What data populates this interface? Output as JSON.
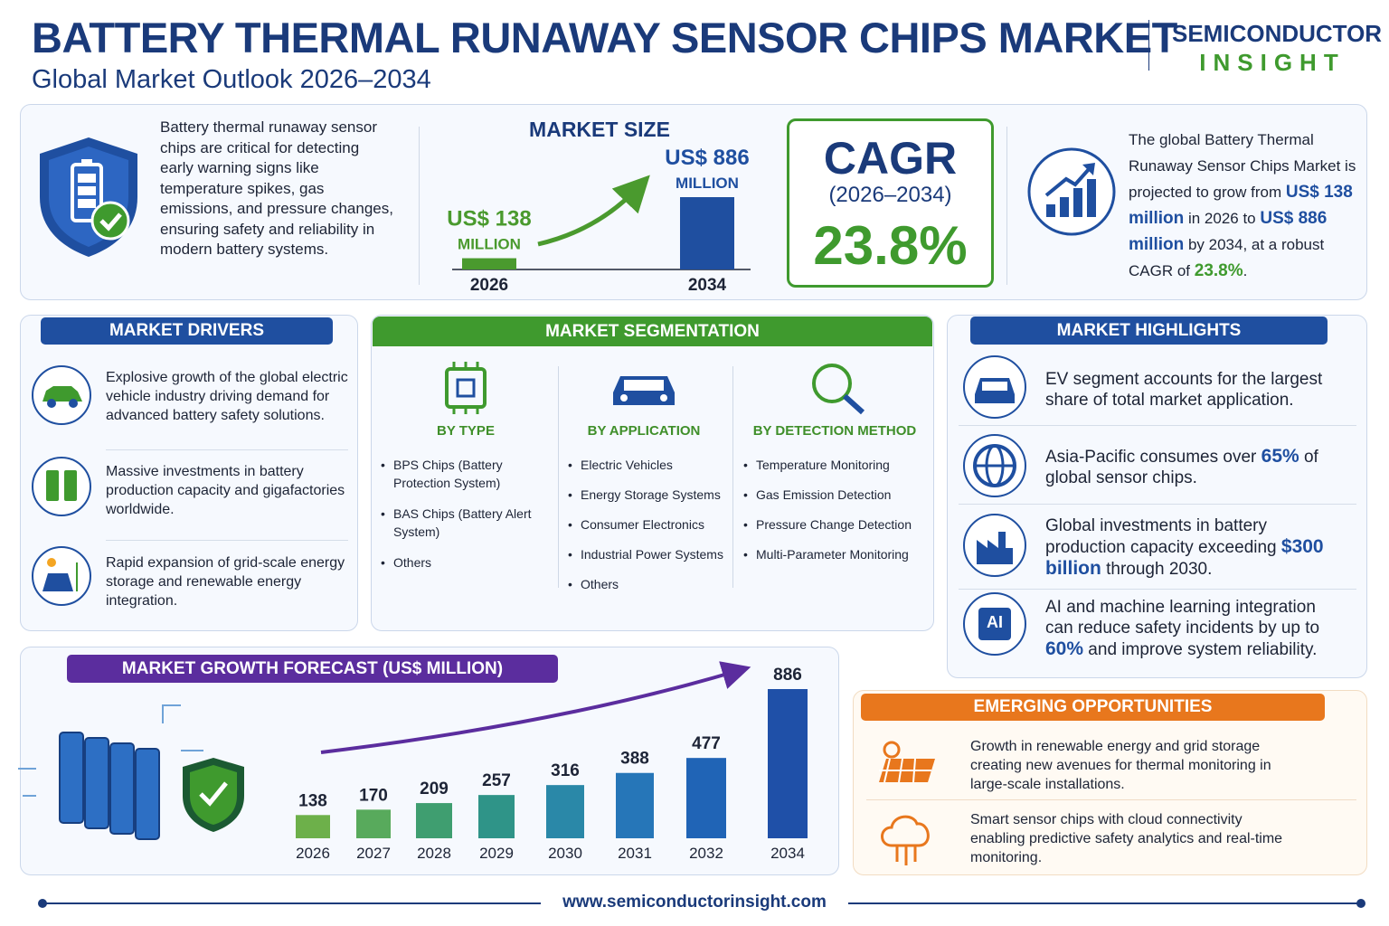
{
  "header": {
    "title": "BATTERY THERMAL RUNAWAY SENSOR CHIPS MARKET",
    "subtitle": "Global Market Outlook 2026–2034",
    "brand_top": "SEMICONDUCTOR",
    "brand_bottom": "INSIGHT"
  },
  "summary": {
    "description": "Battery thermal runaway sensor chips are critical for detecting early warning signs like temperature spikes, gas emissions, and pressure changes, ensuring safety and reliability in modern battery systems.",
    "cagr_title": "CAGR",
    "cagr_period": "(2026–2034)",
    "cagr_value": "23.8%",
    "outlook": [
      "The global Battery Thermal Runaway Sensor Chips Market is projected to grow from ",
      "US$ 138 million",
      " in 2026 to ",
      "US$ 886 million",
      " by 2034, at a robust CAGR of ",
      "23.8%",
      "."
    ]
  },
  "drivers": {
    "title": "MARKET DRIVERS",
    "items": [
      "Explosive growth of the global electric vehicle industry driving demand for advanced battery safety solutions.",
      "Massive investments in battery production capacity and gigafactories worldwide.",
      "Rapid expansion of grid-scale energy storage and renewable energy integration."
    ]
  },
  "segmentation": {
    "title": "MARKET SEGMENTATION",
    "columns": [
      {
        "heading": "BY TYPE",
        "items": [
          "BPS Chips (Battery Protection System)",
          "BAS Chips (Battery Alert System)",
          "Others"
        ]
      },
      {
        "heading": "BY APPLICATION",
        "items": [
          "Electric Vehicles",
          "Energy Storage Systems",
          "Consumer Electronics",
          "Industrial Power Systems",
          "Others"
        ]
      },
      {
        "heading": "BY DETECTION METHOD",
        "items": [
          "Temperature Monitoring",
          "Gas Emission Detection",
          "Pressure Change Detection",
          "Multi-Parameter Monitoring"
        ]
      }
    ]
  },
  "highlights": {
    "title": "MARKET HIGHLIGHTS",
    "ai_icon_text": "AI",
    "items": [
      [
        "EV segment accounts for the largest share of total market application."
      ],
      [
        "Asia-Pacific consumes over ",
        "65%",
        " of global sensor chips."
      ],
      [
        "Global investments in battery production capacity exceeding ",
        "$300 billion",
        " through 2030."
      ],
      [
        "AI and machine learning integration can reduce safety incidents by up to ",
        "60%",
        " and improve system reliability."
      ]
    ]
  },
  "opportunities": {
    "title": "EMERGING OPPORTUNITIES",
    "items": [
      "Growth in renewable energy and grid storage creating new avenues for thermal monitoring in large-scale installations.",
      "Smart sensor chips with cloud connectivity enabling predictive safety analytics and real-time monitoring."
    ]
  },
  "footer": {
    "url": "www.semiconductorinsight.com"
  },
  "chart_data": [
    {
      "type": "bar",
      "title": "MARKET GROWTH FORECAST (US$ MILLION)",
      "categories": [
        "2026",
        "2027",
        "2028",
        "2029",
        "2030",
        "2031",
        "2032",
        "2034"
      ],
      "values": [
        138,
        170,
        209,
        257,
        316,
        388,
        477,
        886
      ],
      "colors": [
        "#6db04a",
        "#58aa5c",
        "#3f9e70",
        "#2f9488",
        "#2a88a8",
        "#2676b8",
        "#2064b6",
        "#1f50a8"
      ]
    },
    {
      "type": "bar",
      "title": "MARKET SIZE",
      "categories": [
        "2026",
        "2034"
      ],
      "values": [
        138,
        886
      ],
      "value_labels": [
        "US$ 138",
        "US$ 886"
      ],
      "unit_label": "MILLION",
      "colors": [
        "#4a9a2e",
        "#1f4fa0"
      ]
    }
  ]
}
